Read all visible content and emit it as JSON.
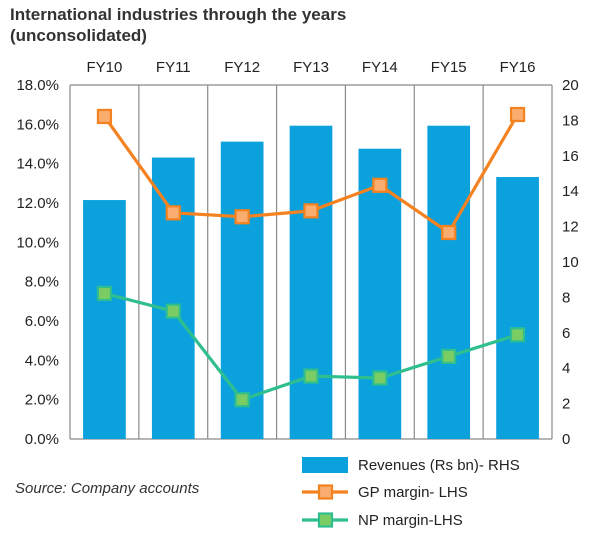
{
  "chart_data": {
    "type": "bar+line",
    "title": [
      "International industries through the years",
      "(unconsolidated)"
    ],
    "categories": [
      "FY10",
      "FY11",
      "FY12",
      "FY13",
      "FY14",
      "FY15",
      "FY16"
    ],
    "left_axis": {
      "ticks": [
        "0.0%",
        "2.0%",
        "4.0%",
        "6.0%",
        "8.0%",
        "10.0%",
        "12.0%",
        "14.0%",
        "16.0%",
        "18.0%"
      ],
      "range": [
        0,
        18
      ]
    },
    "right_axis": {
      "ticks": [
        "0",
        "2",
        "4",
        "6",
        "8",
        "10",
        "12",
        "14",
        "16",
        "18",
        "20"
      ],
      "range": [
        0,
        20
      ]
    },
    "series": [
      {
        "name": "Revenues  (Rs bn)- RHS",
        "kind": "bar",
        "axis": "right",
        "color": "#0aa1dd",
        "values": [
          13.5,
          15.9,
          16.8,
          17.7,
          16.4,
          17.7,
          14.8
        ]
      },
      {
        "name": "GP margin- LHS",
        "kind": "line",
        "axis": "left",
        "color": "#f58220",
        "marker_fill": "#f9ad6e",
        "values": [
          16.4,
          11.5,
          11.3,
          11.6,
          12.9,
          10.5,
          16.5
        ]
      },
      {
        "name": "NP margin-LHS",
        "kind": "line",
        "axis": "left",
        "color": "#2fbf8f",
        "marker_fill": "#7ccc64",
        "values": [
          7.4,
          6.5,
          2.0,
          3.2,
          3.1,
          4.2,
          5.3
        ]
      }
    ],
    "grid": "vertical",
    "legend_position": "bottom-right"
  },
  "source_note": "Source: Company accounts"
}
